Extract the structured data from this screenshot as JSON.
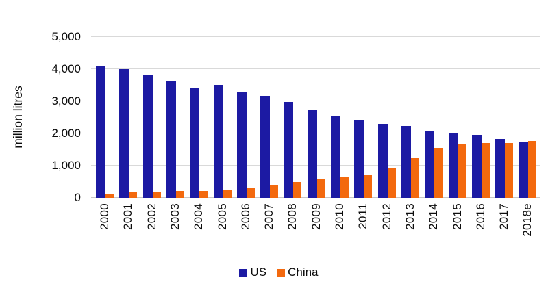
{
  "chart_data": {
    "type": "bar",
    "title": "",
    "ylabel": "million litres",
    "xlabel": "",
    "categories": [
      "2000",
      "2001",
      "2002",
      "2003",
      "2004",
      "2005",
      "2006",
      "2007",
      "2008",
      "2009",
      "2010",
      "2011",
      "2012",
      "2013",
      "2014",
      "2015",
      "2016",
      "2017",
      "2018e"
    ],
    "series": [
      {
        "name": "US",
        "color": "#1C1AA3",
        "values": [
          4100,
          4000,
          3820,
          3620,
          3430,
          3510,
          3300,
          3160,
          2980,
          2730,
          2540,
          2430,
          2290,
          2240,
          2090,
          2030,
          1960,
          1830,
          1740
        ]
      },
      {
        "name": "China",
        "color": "#F3690E",
        "values": [
          130,
          180,
          180,
          220,
          220,
          250,
          320,
          410,
          500,
          600,
          660,
          700,
          920,
          1230,
          1560,
          1670,
          1700,
          1710,
          1760
        ]
      }
    ],
    "ylim": [
      0,
      5000
    ],
    "yticks": [
      {
        "value": 0,
        "label": "0"
      },
      {
        "value": 1000,
        "label": "1,000"
      },
      {
        "value": 2000,
        "label": "2,000"
      },
      {
        "value": 3000,
        "label": "3,000"
      },
      {
        "value": 4000,
        "label": "4,000"
      },
      {
        "value": 5000,
        "label": "5,000"
      }
    ],
    "grid": "horizontal",
    "legend_position": "bottom"
  }
}
